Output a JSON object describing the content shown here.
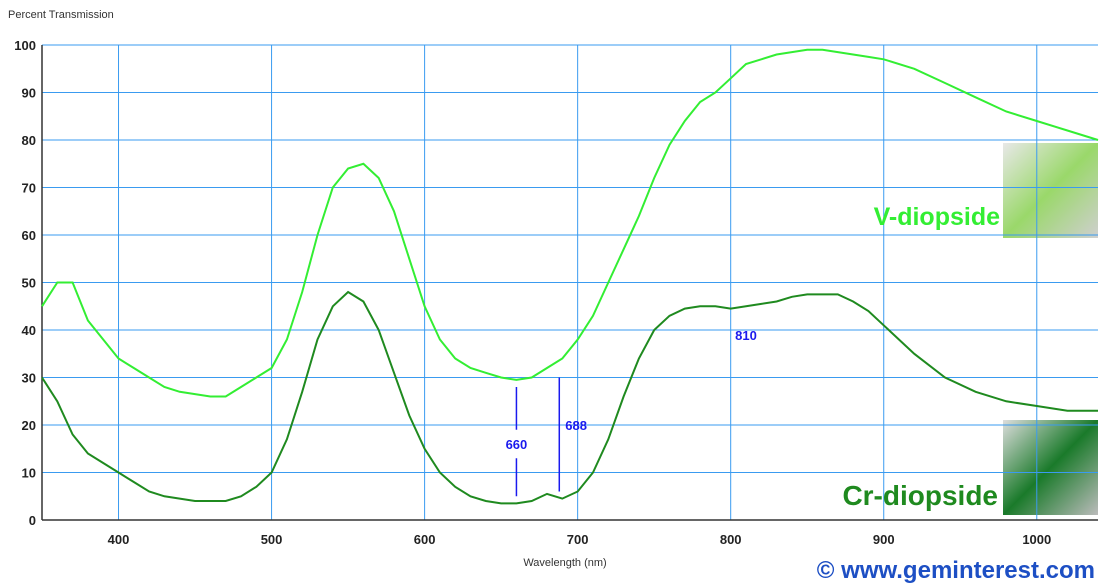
{
  "chart_data": {
    "type": "line",
    "y_label": "Percent Transmission",
    "x_label": "Wavelength (nm)",
    "credit": "© www.geminterest.com",
    "x": [
      350,
      360,
      370,
      380,
      390,
      400,
      410,
      420,
      430,
      440,
      450,
      460,
      470,
      480,
      490,
      500,
      510,
      520,
      530,
      540,
      550,
      560,
      570,
      580,
      590,
      600,
      610,
      620,
      630,
      640,
      650,
      660,
      670,
      680,
      690,
      700,
      710,
      720,
      730,
      740,
      750,
      760,
      770,
      780,
      790,
      800,
      810,
      820,
      830,
      840,
      850,
      860,
      870,
      880,
      890,
      900,
      920,
      940,
      960,
      980,
      1000,
      1020,
      1040
    ],
    "series": [
      {
        "name": "V-diopside",
        "color": "#33ee33",
        "values": [
          45,
          50,
          50,
          42,
          38,
          34,
          32,
          30,
          28,
          27,
          26.5,
          26,
          26,
          28,
          30,
          32,
          38,
          48,
          60,
          70,
          74,
          75,
          72,
          65,
          55,
          45,
          38,
          34,
          32,
          31,
          30,
          29.5,
          30,
          32,
          34,
          38,
          43,
          50,
          57,
          64,
          72,
          79,
          84,
          88,
          90,
          93,
          96,
          97,
          98,
          98.5,
          99,
          99,
          98.5,
          98,
          97.5,
          97,
          95,
          92,
          89,
          86,
          84,
          82,
          80
        ]
      },
      {
        "name": "Cr-diopside",
        "color": "#1f8a1f",
        "values": [
          30,
          25,
          18,
          14,
          12,
          10,
          8,
          6,
          5,
          4.5,
          4,
          4,
          4,
          5,
          7,
          10,
          17,
          27,
          38,
          45,
          48,
          46,
          40,
          31,
          22,
          15,
          10,
          7,
          5,
          4,
          3.5,
          3.5,
          4,
          5.5,
          4.5,
          6,
          10,
          17,
          26,
          34,
          40,
          43,
          44.5,
          45,
          45,
          44.5,
          45,
          45.5,
          46,
          47,
          47.5,
          47.5,
          47.5,
          46,
          44,
          41,
          35,
          30,
          27,
          25,
          24,
          23,
          23
        ]
      }
    ],
    "annotations": [
      {
        "x": 660
      },
      {
        "x": 688
      },
      {
        "x": 810
      }
    ],
    "annotation_color": "#1a1aee",
    "xlim": [
      350,
      1040
    ],
    "ylim": [
      0,
      100
    ],
    "xticks": [
      400,
      500,
      600,
      700,
      800,
      900,
      1000
    ],
    "yticks": [
      0,
      10,
      20,
      30,
      40,
      50,
      60,
      70,
      80,
      90,
      100
    ],
    "grid": true,
    "grid_color": "#3a9bf0"
  }
}
